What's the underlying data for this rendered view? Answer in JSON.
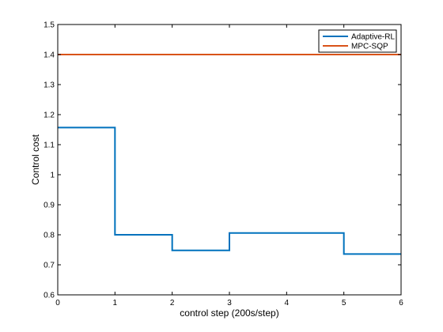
{
  "chart_data": {
    "type": "line",
    "title": "",
    "xlabel": "control step (200s/step)",
    "ylabel": "Control cost",
    "xlim": [
      0,
      6
    ],
    "ylim": [
      0.6,
      1.5
    ],
    "xticks": [
      0,
      1,
      2,
      3,
      4,
      5,
      6
    ],
    "yticks": [
      0.6,
      0.7,
      0.8,
      0.9,
      1,
      1.1,
      1.2,
      1.3,
      1.4,
      1.5
    ],
    "grid": false,
    "legend": "top-right",
    "series": [
      {
        "name": "Adaptive-RL",
        "color": "#0072bd",
        "step": true,
        "x": [
          0,
          1,
          1,
          2,
          2,
          3,
          3,
          5,
          5,
          6
        ],
        "y": [
          1.157,
          1.157,
          0.8,
          0.8,
          0.748,
          0.748,
          0.806,
          0.806,
          0.736,
          0.736
        ]
      },
      {
        "name": "MPC-SQP",
        "color": "#d95319",
        "step": false,
        "x": [
          0,
          6
        ],
        "y": [
          1.4,
          1.4
        ]
      }
    ]
  }
}
